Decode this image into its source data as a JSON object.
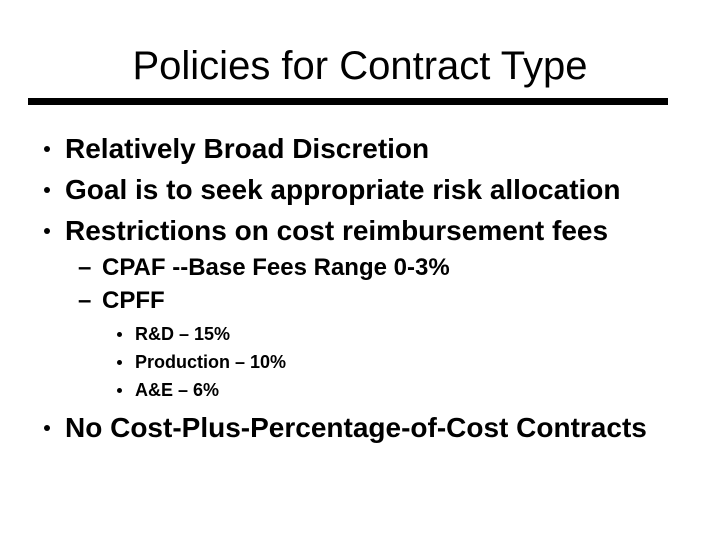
{
  "slide": {
    "title": "Policies for Contract Type",
    "markers": {
      "dash": "–"
    },
    "colors": {
      "text": "#000000",
      "rule": "#000000",
      "background": "#ffffff"
    },
    "bullets": [
      {
        "level": 1,
        "text": "Relatively Broad Discretion"
      },
      {
        "level": 1,
        "text": "Goal is to seek appropriate risk allocation"
      },
      {
        "level": 1,
        "text": "Restrictions on cost reimbursement fees"
      },
      {
        "level": 2,
        "text": "CPAF --Base Fees Range 0-3%"
      },
      {
        "level": 2,
        "text": "CPFF"
      },
      {
        "level": 3,
        "text": "R&D – 15%"
      },
      {
        "level": 3,
        "text": "Production – 10%"
      },
      {
        "level": 3,
        "text": "A&E – 6%"
      },
      {
        "level": 1,
        "text": "No Cost-Plus-Percentage-of-Cost Contracts"
      }
    ]
  }
}
